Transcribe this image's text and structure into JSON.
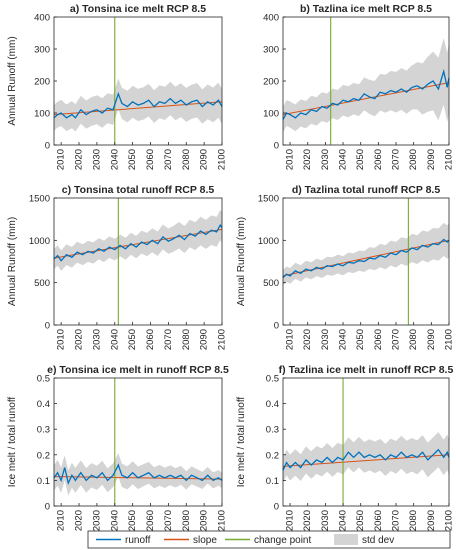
{
  "colors": {
    "runoff": "#0072bd",
    "slope": "#d95319",
    "change_point": "#77ac30",
    "std_dev": "#d4d4d4",
    "axes": "#262626"
  },
  "legend": {
    "runoff": "runoff",
    "slope": "slope",
    "change_point": "change point",
    "std_dev": "std dev"
  },
  "chart_data": [
    {
      "type": "line",
      "title": "a) Tonsina ice melt RCP 8.5",
      "ylabel": "Annual Runoff (mm)",
      "xlim": [
        2006,
        2100
      ],
      "ylim": [
        0,
        400
      ],
      "yticks": [
        "0",
        "100",
        "200",
        "300",
        "400"
      ],
      "xticks": [
        "2010",
        "2020",
        "2030",
        "2040",
        "2050",
        "2060",
        "2070",
        "2080",
        "2090",
        "2100"
      ],
      "change_point": 2040,
      "runoff_keypoints": [
        [
          2006,
          85
        ],
        [
          2008,
          95
        ],
        [
          2010,
          100
        ],
        [
          2013,
          85
        ],
        [
          2016,
          95
        ],
        [
          2018,
          85
        ],
        [
          2021,
          110
        ],
        [
          2024,
          95
        ],
        [
          2027,
          105
        ],
        [
          2030,
          110
        ],
        [
          2033,
          100
        ],
        [
          2036,
          115
        ],
        [
          2039,
          110
        ],
        [
          2042,
          160
        ],
        [
          2044,
          130
        ],
        [
          2047,
          120
        ],
        [
          2050,
          135
        ],
        [
          2053,
          125
        ],
        [
          2056,
          130
        ],
        [
          2059,
          140
        ],
        [
          2062,
          120
        ],
        [
          2065,
          135
        ],
        [
          2068,
          130
        ],
        [
          2071,
          145
        ],
        [
          2074,
          130
        ],
        [
          2077,
          140
        ],
        [
          2080,
          125
        ],
        [
          2083,
          135
        ],
        [
          2086,
          140
        ],
        [
          2089,
          120
        ],
        [
          2092,
          135
        ],
        [
          2095,
          125
        ],
        [
          2098,
          140
        ],
        [
          2100,
          120
        ]
      ],
      "std_halfwidth": [
        [
          2006,
          40
        ],
        [
          2050,
          50
        ],
        [
          2100,
          55
        ]
      ],
      "slope_endpoints": [
        [
          2006,
          95
        ],
        [
          2100,
          135
        ]
      ]
    },
    {
      "type": "line",
      "title": "b) Tazlina ice melt RCP 8.5",
      "ylabel": "",
      "xlim": [
        2006,
        2100
      ],
      "ylim": [
        0,
        400
      ],
      "yticks": [
        "0",
        "100",
        "200",
        "300",
        "400"
      ],
      "xticks": [
        "2010",
        "2020",
        "2030",
        "2040",
        "2050",
        "2060",
        "2070",
        "2080",
        "2090",
        "2100"
      ],
      "change_point": 2033,
      "runoff_keypoints": [
        [
          2006,
          80
        ],
        [
          2008,
          100
        ],
        [
          2010,
          95
        ],
        [
          2013,
          85
        ],
        [
          2016,
          100
        ],
        [
          2019,
          95
        ],
        [
          2022,
          110
        ],
        [
          2025,
          105
        ],
        [
          2028,
          120
        ],
        [
          2031,
          115
        ],
        [
          2034,
          130
        ],
        [
          2037,
          125
        ],
        [
          2040,
          140
        ],
        [
          2043,
          135
        ],
        [
          2046,
          145
        ],
        [
          2049,
          140
        ],
        [
          2052,
          160
        ],
        [
          2055,
          150
        ],
        [
          2058,
          145
        ],
        [
          2061,
          165
        ],
        [
          2064,
          160
        ],
        [
          2067,
          170
        ],
        [
          2070,
          165
        ],
        [
          2073,
          175
        ],
        [
          2076,
          165
        ],
        [
          2079,
          180
        ],
        [
          2082,
          185
        ],
        [
          2085,
          175
        ],
        [
          2088,
          190
        ],
        [
          2091,
          200
        ],
        [
          2094,
          175
        ],
        [
          2097,
          230
        ],
        [
          2099,
          180
        ],
        [
          2100,
          210
        ]
      ],
      "std_halfwidth": [
        [
          2006,
          40
        ],
        [
          2050,
          50
        ],
        [
          2080,
          70
        ],
        [
          2100,
          110
        ]
      ],
      "slope_endpoints": [
        [
          2006,
          95
        ],
        [
          2100,
          195
        ]
      ]
    },
    {
      "type": "line",
      "title": "c) Tonsina total runoff RCP 8.5",
      "ylabel": "Annual Runoff (mm)",
      "xlim": [
        2006,
        2100
      ],
      "ylim": [
        0,
        1500
      ],
      "yticks": [
        "0",
        "500",
        "1000",
        "1500"
      ],
      "xticks": [
        "2010",
        "2020",
        "2030",
        "2040",
        "2050",
        "2060",
        "2070",
        "2080",
        "2090",
        "2100"
      ],
      "change_point": 2042,
      "runoff_keypoints": [
        [
          2006,
          780
        ],
        [
          2008,
          820
        ],
        [
          2010,
          760
        ],
        [
          2013,
          830
        ],
        [
          2016,
          800
        ],
        [
          2019,
          860
        ],
        [
          2022,
          830
        ],
        [
          2025,
          870
        ],
        [
          2028,
          850
        ],
        [
          2031,
          900
        ],
        [
          2034,
          870
        ],
        [
          2037,
          920
        ],
        [
          2040,
          890
        ],
        [
          2043,
          940
        ],
        [
          2046,
          900
        ],
        [
          2049,
          960
        ],
        [
          2052,
          920
        ],
        [
          2055,
          980
        ],
        [
          2058,
          950
        ],
        [
          2061,
          1000
        ],
        [
          2064,
          960
        ],
        [
          2067,
          1040
        ],
        [
          2070,
          990
        ],
        [
          2073,
          1020
        ],
        [
          2076,
          1060
        ],
        [
          2079,
          1010
        ],
        [
          2082,
          1080
        ],
        [
          2085,
          1050
        ],
        [
          2088,
          1110
        ],
        [
          2091,
          1070
        ],
        [
          2094,
          1120
        ],
        [
          2097,
          1100
        ],
        [
          2099,
          1180
        ],
        [
          2100,
          1150
        ]
      ],
      "std_halfwidth": [
        [
          2006,
          120
        ],
        [
          2050,
          130
        ],
        [
          2100,
          180
        ]
      ],
      "slope_endpoints": [
        [
          2006,
          790
        ],
        [
          2100,
          1130
        ]
      ]
    },
    {
      "type": "line",
      "title": "d) Tazlina total runoff RCP 8.5",
      "ylabel": "Annual Runoff (mm)",
      "xlim": [
        2006,
        2100
      ],
      "ylim": [
        0,
        1500
      ],
      "yticks": [
        "0",
        "500",
        "1000",
        "1500"
      ],
      "xticks": [
        "2010",
        "2020",
        "2030",
        "2040",
        "2050",
        "2060",
        "2070",
        "2080",
        "2090",
        "2100"
      ],
      "change_point": 2077,
      "runoff_keypoints": [
        [
          2006,
          560
        ],
        [
          2008,
          600
        ],
        [
          2010,
          580
        ],
        [
          2013,
          640
        ],
        [
          2016,
          610
        ],
        [
          2019,
          660
        ],
        [
          2022,
          640
        ],
        [
          2025,
          680
        ],
        [
          2028,
          660
        ],
        [
          2031,
          700
        ],
        [
          2034,
          690
        ],
        [
          2037,
          720
        ],
        [
          2040,
          700
        ],
        [
          2043,
          740
        ],
        [
          2046,
          730
        ],
        [
          2049,
          760
        ],
        [
          2052,
          750
        ],
        [
          2055,
          790
        ],
        [
          2058,
          780
        ],
        [
          2061,
          820
        ],
        [
          2064,
          800
        ],
        [
          2067,
          850
        ],
        [
          2070,
          830
        ],
        [
          2073,
          880
        ],
        [
          2076,
          860
        ],
        [
          2079,
          910
        ],
        [
          2082,
          890
        ],
        [
          2085,
          940
        ],
        [
          2088,
          920
        ],
        [
          2091,
          960
        ],
        [
          2094,
          950
        ],
        [
          2097,
          1010
        ],
        [
          2099,
          980
        ],
        [
          2100,
          1000
        ]
      ],
      "std_halfwidth": [
        [
          2006,
          90
        ],
        [
          2050,
          120
        ],
        [
          2100,
          200
        ]
      ],
      "slope_endpoints": [
        [
          2006,
          580
        ],
        [
          2100,
          1000
        ]
      ]
    },
    {
      "type": "line",
      "title": "e) Tonsina ice melt in runoff RCP 8.5",
      "ylabel": "Ice melt / total runoff",
      "xlim": [
        2006,
        2100
      ],
      "ylim": [
        0,
        0.5
      ],
      "yticks": [
        "0",
        "0.1",
        "0.2",
        "0.3",
        "0.4",
        "0.5"
      ],
      "xticks": [
        "2010",
        "2020",
        "2030",
        "2040",
        "2050",
        "2060",
        "2070",
        "2080",
        "2090",
        "2100"
      ],
      "change_point": 2040,
      "runoff_keypoints": [
        [
          2006,
          0.11
        ],
        [
          2008,
          0.13
        ],
        [
          2010,
          0.1
        ],
        [
          2012,
          0.15
        ],
        [
          2014,
          0.09
        ],
        [
          2016,
          0.12
        ],
        [
          2018,
          0.1
        ],
        [
          2021,
          0.13
        ],
        [
          2024,
          0.1
        ],
        [
          2027,
          0.12
        ],
        [
          2030,
          0.11
        ],
        [
          2033,
          0.13
        ],
        [
          2036,
          0.1
        ],
        [
          2039,
          0.12
        ],
        [
          2042,
          0.16
        ],
        [
          2044,
          0.12
        ],
        [
          2047,
          0.11
        ],
        [
          2050,
          0.13
        ],
        [
          2053,
          0.11
        ],
        [
          2056,
          0.12
        ],
        [
          2059,
          0.13
        ],
        [
          2062,
          0.11
        ],
        [
          2065,
          0.12
        ],
        [
          2068,
          0.11
        ],
        [
          2071,
          0.12
        ],
        [
          2074,
          0.11
        ],
        [
          2077,
          0.12
        ],
        [
          2080,
          0.1
        ],
        [
          2083,
          0.12
        ],
        [
          2086,
          0.11
        ],
        [
          2089,
          0.1
        ],
        [
          2092,
          0.12
        ],
        [
          2095,
          0.1
        ],
        [
          2098,
          0.11
        ],
        [
          2100,
          0.1
        ]
      ],
      "std_halfwidth": [
        [
          2006,
          0.05
        ],
        [
          2050,
          0.045
        ],
        [
          2100,
          0.03
        ]
      ],
      "slope_endpoints": [
        [
          2006,
          0.115
        ],
        [
          2100,
          0.105
        ]
      ]
    },
    {
      "type": "line",
      "title": "f) Tazlina ice melt in runoff RCP 8.5",
      "ylabel": "Ice melt / total runoff",
      "xlim": [
        2006,
        2100
      ],
      "ylim": [
        0,
        0.5
      ],
      "yticks": [
        "0",
        "0.1",
        "0.2",
        "0.3",
        "0.4",
        "0.5"
      ],
      "xticks": [
        "2010",
        "2020",
        "2030",
        "2040",
        "2050",
        "2060",
        "2070",
        "2080",
        "2090",
        "2100"
      ],
      "change_point": 2040,
      "runoff_keypoints": [
        [
          2006,
          0.14
        ],
        [
          2008,
          0.17
        ],
        [
          2010,
          0.15
        ],
        [
          2013,
          0.17
        ],
        [
          2016,
          0.15
        ],
        [
          2019,
          0.18
        ],
        [
          2022,
          0.16
        ],
        [
          2025,
          0.18
        ],
        [
          2028,
          0.17
        ],
        [
          2031,
          0.19
        ],
        [
          2034,
          0.17
        ],
        [
          2037,
          0.19
        ],
        [
          2040,
          0.18
        ],
        [
          2043,
          0.21
        ],
        [
          2046,
          0.19
        ],
        [
          2049,
          0.21
        ],
        [
          2052,
          0.19
        ],
        [
          2055,
          0.2
        ],
        [
          2058,
          0.19
        ],
        [
          2061,
          0.2
        ],
        [
          2064,
          0.18
        ],
        [
          2067,
          0.2
        ],
        [
          2070,
          0.19
        ],
        [
          2073,
          0.21
        ],
        [
          2076,
          0.19
        ],
        [
          2079,
          0.2
        ],
        [
          2082,
          0.19
        ],
        [
          2085,
          0.21
        ],
        [
          2088,
          0.18
        ],
        [
          2091,
          0.2
        ],
        [
          2094,
          0.22
        ],
        [
          2097,
          0.19
        ],
        [
          2099,
          0.21
        ],
        [
          2100,
          0.19
        ]
      ],
      "std_halfwidth": [
        [
          2006,
          0.05
        ],
        [
          2050,
          0.06
        ],
        [
          2100,
          0.07
        ]
      ],
      "slope_endpoints": [
        [
          2006,
          0.155
        ],
        [
          2100,
          0.2
        ]
      ]
    }
  ]
}
